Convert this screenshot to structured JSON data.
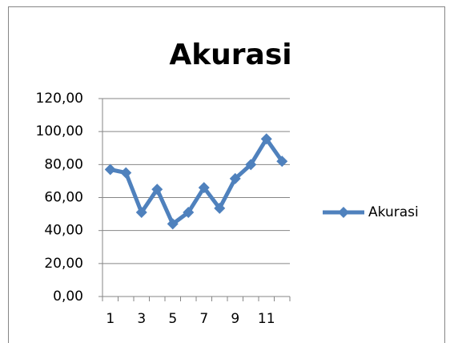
{
  "chart_data": {
    "type": "line",
    "title": "Akurasi",
    "categories": [
      "1",
      null,
      "3",
      null,
      "5",
      null,
      "7",
      null,
      "9",
      null,
      "11",
      null
    ],
    "series": [
      {
        "name": "Akurasi",
        "color": "#4f81bd",
        "values": [
          77,
          75,
          51,
          65,
          44,
          51,
          66,
          53.5,
          71.5,
          80,
          95.5,
          82
        ]
      }
    ],
    "ylim": [
      0,
      120
    ],
    "yticks": [
      {
        "value": 0,
        "label": "0,00"
      },
      {
        "value": 20,
        "label": "20,00"
      },
      {
        "value": 40,
        "label": "40,00"
      },
      {
        "value": 60,
        "label": "60,00"
      },
      {
        "value": 80,
        "label": "80,00"
      },
      {
        "value": 100,
        "label": "100,00"
      },
      {
        "value": 120,
        "label": "120,00"
      }
    ],
    "grid": true,
    "legend": "right"
  }
}
